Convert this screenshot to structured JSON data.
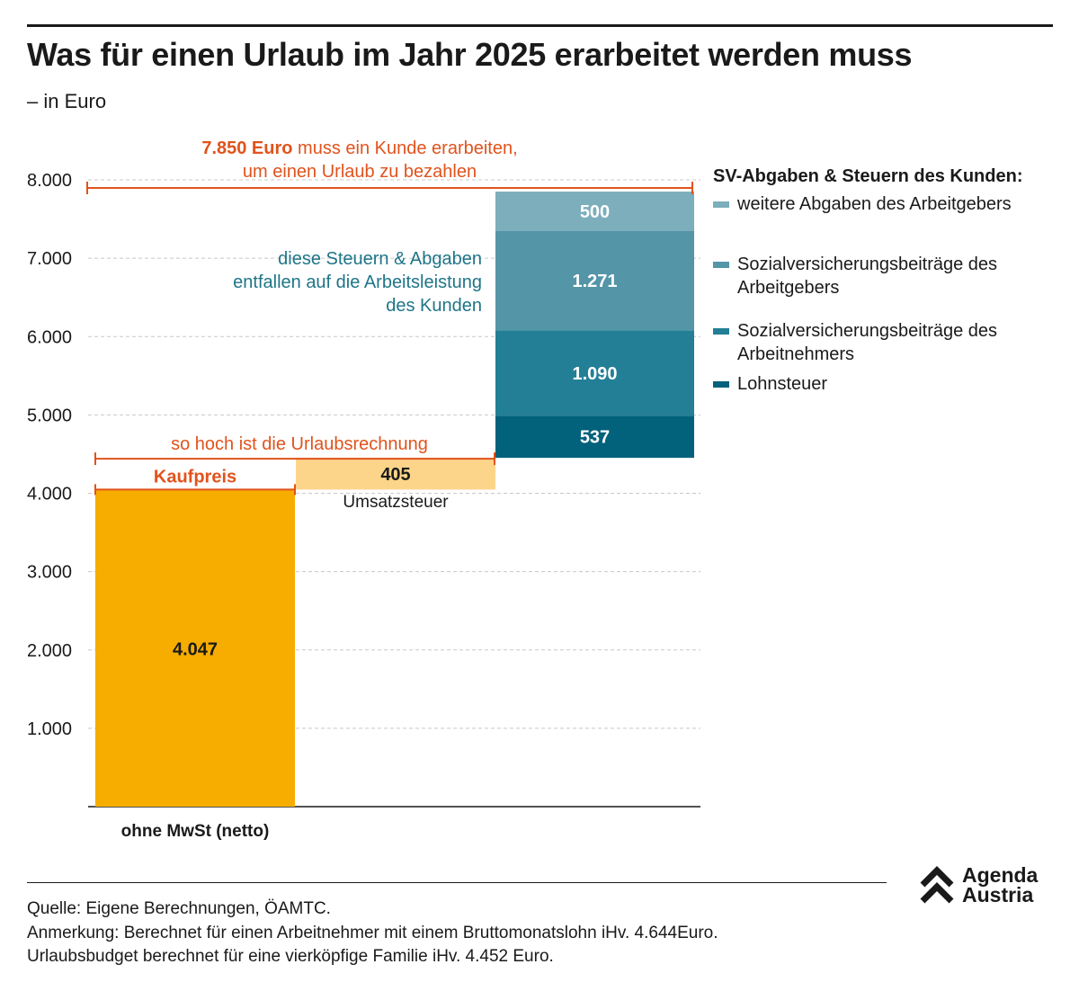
{
  "title": "Was für einen Urlaub im Jahr 2025 erarbeitet werden muss",
  "subtitle": "– in Euro",
  "chart_data": {
    "type": "bar",
    "subtype": "waterfall",
    "y_ticks": [
      "1.000",
      "2.000",
      "3.000",
      "4.000",
      "5.000",
      "6.000",
      "7.000",
      "8.000"
    ],
    "ylim": [
      0,
      8000
    ],
    "grid": true,
    "categories": [
      "ohne MwSt (netto)",
      "",
      ""
    ],
    "bars": [
      {
        "name": "Kaufpreis",
        "label": "4.047",
        "base": 0,
        "value": 4047,
        "color": "#f6ad00",
        "label_color": "#1a1a1a"
      },
      {
        "name": "Umsatzsteuer",
        "label": "405",
        "base": 4047,
        "value": 405,
        "color": "#fdd58a",
        "label_color": "#1a1a1a"
      }
    ],
    "stack": {
      "base": 4452,
      "segments": [
        {
          "name": "Lohnsteuer",
          "label": "537",
          "value": 537,
          "color": "#02617b"
        },
        {
          "name": "Sozialversicherungsbeiträge des Arbeitnehmers",
          "label": "1.090",
          "value": 1090,
          "color": "#227f96"
        },
        {
          "name": "Sozialversicherungsbeiträge des Arbeitgebers",
          "label": "1.271",
          "value": 1271,
          "color": "#5495a8"
        },
        {
          "name": "weitere Abgaben des Arbeitgebers",
          "label": "500",
          "value": 500,
          "color": "#7caebc"
        }
      ]
    },
    "total_bracket": {
      "value": 7850,
      "line1_bold": "7.850 Euro",
      "line1_rest": " muss ein Kunde erarbeiten,",
      "line2": "um einen Urlaub zu bezahlen"
    },
    "invoice_bracket": {
      "value": 4452,
      "label": "so hoch ist die Urlaubsrechnung"
    },
    "kaufpreis_label": "Kaufpreis",
    "umsatzsteuer_label": "Umsatzsteuer",
    "stack_annotation": [
      "diese Steuern & Abgaben",
      "entfallen auf die Arbeitsleistung",
      "des Kunden"
    ],
    "accent_color": "#e0531c",
    "annotation_color": "#1e7588"
  },
  "legend": {
    "title": "SV-Abgaben & Steuern des Kunden:",
    "items": [
      {
        "label": "weitere Abgaben des Arbeitgebers",
        "color": "#7caebc"
      },
      {
        "label": "Sozialversicherungsbeiträge des Arbeitgebers",
        "color": "#5495a8"
      },
      {
        "label": "Sozialversicherungsbeiträge des Arbeitnehmers",
        "color": "#227f96"
      },
      {
        "label": "Lohnsteuer",
        "color": "#02617b"
      }
    ]
  },
  "source": {
    "line1": "Quelle: Eigene Berechnungen, ÖAMTC.",
    "line2": "Anmerkung: Berechnet für einen Arbeitnehmer mit einem Bruttomonatslohn iHv. 4.644Euro.",
    "line3": "Urlaubsbudget berechnet für eine vierköpfige Familie iHv. 4.452 Euro."
  },
  "logo": {
    "line1": "Agenda",
    "line2": "Austria",
    "icon": "double-chevron-up-icon"
  }
}
